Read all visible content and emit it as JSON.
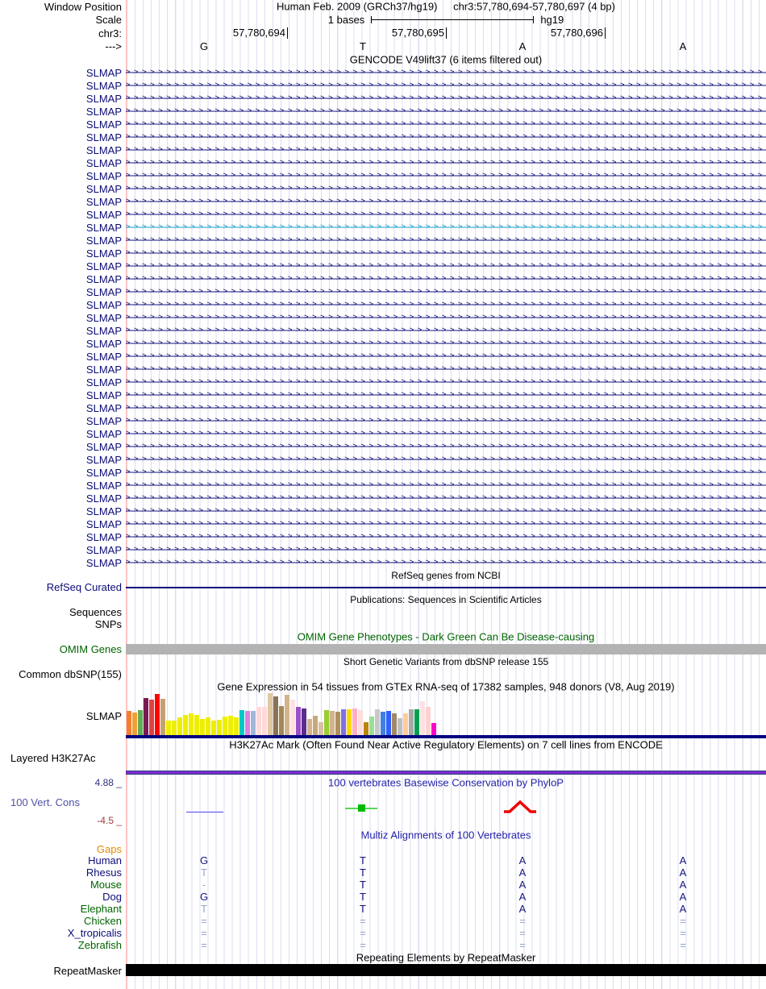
{
  "header": {
    "window_position_label": "Window Position",
    "assembly": "Human Feb. 2009 (GRCh37/hg19)",
    "position": "chr3:57,780,694-57,780,697 (4 bp)",
    "scale_label": "Scale",
    "scale_value": "1 bases",
    "scale_genome": "hg19",
    "chrom_label": "chr3:",
    "ruler_ticks": [
      "57,780,694",
      "57,780,695",
      "57,780,696"
    ],
    "strand_label": "--->",
    "sequence": [
      "G",
      "T",
      "A",
      "A"
    ]
  },
  "gencode": {
    "title": "GENCODE V49lift37 (6 items filtered out)",
    "gene_label": "SLMAP",
    "row_count": 39,
    "highlight_row_index": 12,
    "normal_color": "#0c0c78",
    "highlight_color": "#1a9cc9",
    "arrow_char": ">",
    "arrows_per_row": 79
  },
  "refseq": {
    "title": "RefSeq genes from NCBI",
    "track_label": "RefSeq Curated",
    "line_color": "#00007c"
  },
  "publications": {
    "title": "Publications: Sequences in Scientific Articles"
  },
  "sequences_label": "Sequences",
  "snps_label": "SNPs",
  "omim": {
    "title": "OMIM Gene Phenotypes - Dark Green Can Be Disease-causing",
    "track_label": "OMIM Genes",
    "text_color": "#006400",
    "bar_color": "#b3b3b3"
  },
  "dbsnp": {
    "title": "Short Genetic Variants from dbSNP release 155",
    "track_label": "Common dbSNP(155)"
  },
  "gtex": {
    "title": "Gene Expression in 54 tissues from GTEx RNA-seq of 17382 samples, 948 donors (V8, Aug 2019)",
    "track_label": "SLMAP",
    "baseline_color": "#000080",
    "chart_data": {
      "type": "bar",
      "title": "Gene Expression in 54 tissues from GTEx RNA-seq of 17382 samples, 948 donors (V8, Aug 2019)",
      "ylabel": "expression (relative bar height, px)",
      "legend_position": "none",
      "grid": false,
      "bars": [
        {
          "c": "#f08030",
          "h": 30
        },
        {
          "c": "#f0a038",
          "h": 28
        },
        {
          "c": "#66aa55",
          "h": 31
        },
        {
          "c": "#7a1a55",
          "h": 46
        },
        {
          "c": "#e04040",
          "h": 44
        },
        {
          "c": "#ff0000",
          "h": 51
        },
        {
          "c": "#c8a070",
          "h": 45
        },
        {
          "c": "#eeee00",
          "h": 18
        },
        {
          "c": "#eeee00",
          "h": 18
        },
        {
          "c": "#eeee00",
          "h": 22
        },
        {
          "c": "#eeee00",
          "h": 25
        },
        {
          "c": "#eeee00",
          "h": 27
        },
        {
          "c": "#eeee00",
          "h": 25
        },
        {
          "c": "#eeee00",
          "h": 20
        },
        {
          "c": "#eeee00",
          "h": 22
        },
        {
          "c": "#eeee00",
          "h": 18
        },
        {
          "c": "#eeee00",
          "h": 19
        },
        {
          "c": "#eeee00",
          "h": 23
        },
        {
          "c": "#eeee00",
          "h": 24
        },
        {
          "c": "#eeee00",
          "h": 22
        },
        {
          "c": "#00c8c8",
          "h": 31
        },
        {
          "c": "#e080e0",
          "h": 30
        },
        {
          "c": "#a0b8d8",
          "h": 30
        },
        {
          "c": "#ffd8d8",
          "h": 35
        },
        {
          "c": "#ffd8d8",
          "h": 35
        },
        {
          "c": "#e0c8a0",
          "h": 52
        },
        {
          "c": "#8b7355",
          "h": 48
        },
        {
          "c": "#a08858",
          "h": 36
        },
        {
          "c": "#d2b48c",
          "h": 50
        },
        {
          "c": "#ffe0e0",
          "h": 44
        },
        {
          "c": "#9950c8",
          "h": 35
        },
        {
          "c": "#5a2d8a",
          "h": 33
        },
        {
          "c": "#d2b48c",
          "h": 20
        },
        {
          "c": "#c8a878",
          "h": 24
        },
        {
          "c": "#d8c0a8",
          "h": 16
        },
        {
          "c": "#9acd32",
          "h": 31
        },
        {
          "c": "#d2b48c",
          "h": 30
        },
        {
          "c": "#b09060",
          "h": 29
        },
        {
          "c": "#8070e0",
          "h": 32
        },
        {
          "c": "#ffd700",
          "h": 32
        },
        {
          "c": "#ffb0c0",
          "h": 33
        },
        {
          "c": "#ffdddd",
          "h": 31
        },
        {
          "c": "#b8860b",
          "h": 16
        },
        {
          "c": "#98e098",
          "h": 23
        },
        {
          "c": "#c8c8c8",
          "h": 32
        },
        {
          "c": "#4080e0",
          "h": 29
        },
        {
          "c": "#3060ff",
          "h": 30
        },
        {
          "c": "#a08868",
          "h": 27
        },
        {
          "c": "#c0c0c0",
          "h": 21
        },
        {
          "c": "#ffcc99",
          "h": 27
        },
        {
          "c": "#a8a8a8",
          "h": 32
        },
        {
          "c": "#00a050",
          "h": 32
        },
        {
          "c": "#ffe0e0",
          "h": 42
        },
        {
          "c": "#ffd0d0",
          "h": 35
        },
        {
          "c": "#ff00cc",
          "h": 15
        }
      ]
    }
  },
  "h3k27ac": {
    "title": "H3K27Ac Mark (Often Found Near Active Regulatory Elements) on 7 cell lines from ENCODE",
    "track_label": "Layered H3K27Ac",
    "band_color": "#7a30d0"
  },
  "phylop": {
    "title": "100 vertebrates Basewise Conservation by PhyloP",
    "track_label": "100 Vert. Cons",
    "max_label": "4.88 _",
    "min_label": "-4.5 _",
    "marks": [
      {
        "base": "G",
        "shape": "dash",
        "color": "#4848e8"
      },
      {
        "base": "T",
        "shape": "bar-with-block",
        "color": "#00bb00"
      },
      {
        "base": "A",
        "shape": "peak",
        "color": "#ee0000"
      }
    ]
  },
  "multiz": {
    "title": "Multiz Alignments of 100 Vertebrates",
    "gaps_label": "Gaps",
    "base_colors": {
      "match": "#15157d",
      "pale": "#97a3cc"
    },
    "species": [
      {
        "name": "Human",
        "label_color": "#0c0c78",
        "bases": [
          {
            "t": "G",
            "s": "match"
          },
          {
            "t": "T",
            "s": "match"
          },
          {
            "t": "A",
            "s": "match"
          },
          {
            "t": "A",
            "s": "match"
          }
        ]
      },
      {
        "name": "Rhesus",
        "label_color": "#0c0c78",
        "bases": [
          {
            "t": "T",
            "s": "pale"
          },
          {
            "t": "T",
            "s": "match"
          },
          {
            "t": "A",
            "s": "match"
          },
          {
            "t": "A",
            "s": "match"
          }
        ]
      },
      {
        "name": "Mouse",
        "label_color": "#006400",
        "bases": [
          {
            "t": "-",
            "s": "pale"
          },
          {
            "t": "T",
            "s": "match"
          },
          {
            "t": "A",
            "s": "match"
          },
          {
            "t": "A",
            "s": "match"
          }
        ]
      },
      {
        "name": "Dog",
        "label_color": "#0c0c78",
        "bases": [
          {
            "t": "G",
            "s": "match"
          },
          {
            "t": "T",
            "s": "match"
          },
          {
            "t": "A",
            "s": "match"
          },
          {
            "t": "A",
            "s": "match"
          }
        ]
      },
      {
        "name": "Elephant",
        "label_color": "#006400",
        "bases": [
          {
            "t": "T",
            "s": "pale"
          },
          {
            "t": "T",
            "s": "match"
          },
          {
            "t": "A",
            "s": "match"
          },
          {
            "t": "A",
            "s": "match"
          }
        ]
      },
      {
        "name": "Chicken",
        "label_color": "#006400",
        "bases": [
          {
            "t": "=",
            "s": "pale"
          },
          {
            "t": "=",
            "s": "pale"
          },
          {
            "t": "=",
            "s": "pale"
          },
          {
            "t": "=",
            "s": "pale"
          }
        ]
      },
      {
        "name": "X_tropicalis",
        "label_color": "#0c0c78",
        "bases": [
          {
            "t": "=",
            "s": "pale"
          },
          {
            "t": "=",
            "s": "pale"
          },
          {
            "t": "=",
            "s": "pale"
          },
          {
            "t": "=",
            "s": "pale"
          }
        ]
      },
      {
        "name": "Zebrafish",
        "label_color": "#006400",
        "bases": [
          {
            "t": "=",
            "s": "pale"
          },
          {
            "t": "=",
            "s": "pale"
          },
          {
            "t": "=",
            "s": "pale"
          },
          {
            "t": "=",
            "s": "pale"
          }
        ]
      }
    ]
  },
  "repeatmasker": {
    "title": "Repeating Elements by RepeatMasker",
    "track_label": "RepeatMasker",
    "bar_color": "#000000"
  }
}
